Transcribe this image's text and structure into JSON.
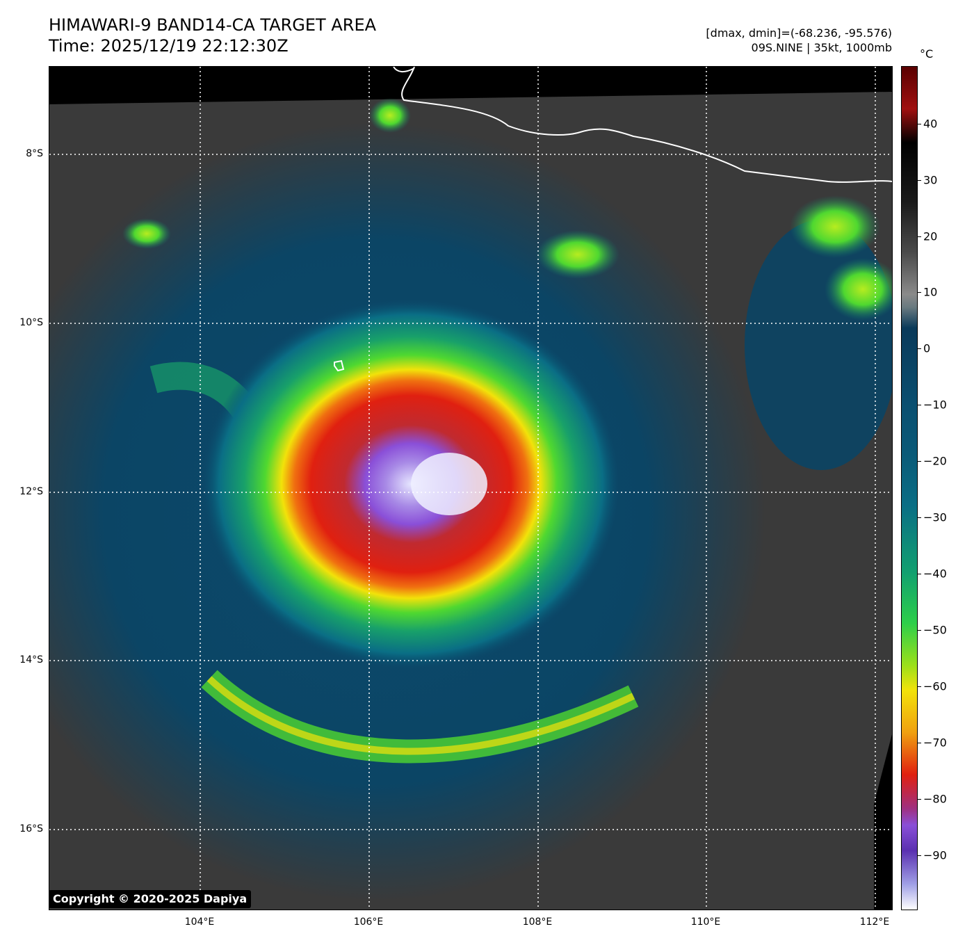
{
  "header": {
    "title_line1": "HIMAWARI-9 BAND14-CA TARGET AREA",
    "title_line2": "Time: 2025/12/19 22:12:30Z",
    "range_text": "[dmax, dmin]=(-68.236, -95.576)",
    "storm_text": "09S.NINE | 35kt, 1000mb"
  },
  "map": {
    "lat_labels": [
      "8°S",
      "10°S",
      "12°S",
      "14°S",
      "16°S"
    ],
    "lon_labels": [
      "104°E",
      "106°E",
      "108°E",
      "110°E",
      "112°E"
    ],
    "coastline_color": "#ffffff",
    "gridline_color": "#ffffff"
  },
  "colorbar": {
    "unit": "°C",
    "tick_labels": [
      "40",
      "30",
      "20",
      "10",
      "0",
      "−10",
      "−20",
      "−30",
      "−40",
      "−50",
      "−60",
      "−70",
      "−80",
      "−90"
    ],
    "colors": {
      "warm_top": "#5a0000",
      "gray_mid": "#808080",
      "cyan": "#0a6e85",
      "green": "#2dcf4a",
      "yellow": "#f2e20a",
      "red": "#e02010",
      "purple": "#8a4fd8",
      "white_bottom": "#ffffff"
    }
  },
  "footer": {
    "copyright": "Copyright © 2020-2025 Dapiya"
  }
}
